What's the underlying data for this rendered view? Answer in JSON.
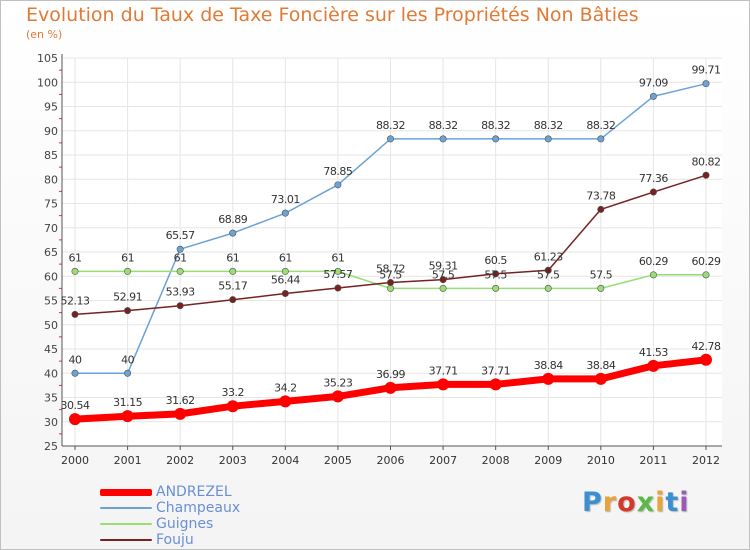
{
  "header": {
    "title": "Evolution du Taux de Taxe Foncière sur les Propriétés Non Bâties",
    "unit": "(en %)"
  },
  "logo": {
    "text": "Proxiti",
    "colors": [
      "#3a8fd0",
      "#e8a33a",
      "#d43a2a",
      "#5db84a",
      "#e8a33a",
      "#3a8fd0",
      "#9a5ab8"
    ]
  },
  "chart_data": {
    "type": "line",
    "title": "Evolution du Taux de Taxe Foncière sur les Propriétés Non Bâties",
    "ylabel": "(en %)",
    "xlabel": "",
    "x": [
      "2000",
      "2001",
      "2002",
      "2003",
      "2004",
      "2005",
      "2006",
      "2007",
      "2008",
      "2009",
      "2010",
      "2011",
      "2012"
    ],
    "ylim": [
      25,
      105
    ],
    "yticks": [
      25,
      30,
      35,
      40,
      45,
      50,
      55,
      60,
      65,
      70,
      75,
      80,
      85,
      90,
      95,
      100,
      105
    ],
    "grid": true,
    "legend_position": "bottom-left",
    "series": [
      {
        "name": "ANDREZEL",
        "color": "#ff0000",
        "emphasis": true,
        "values": [
          30.54,
          31.15,
          31.62,
          33.2,
          34.2,
          35.23,
          36.99,
          37.71,
          37.71,
          38.84,
          38.84,
          41.53,
          42.78
        ],
        "labels": [
          "30.54",
          "31.15",
          "31.62",
          "33.2",
          "34.2",
          "35.23",
          "36.99",
          "37.71",
          "37.71",
          "38.84",
          "38.84",
          "41.53",
          "42.78"
        ]
      },
      {
        "name": "Champeaux",
        "color": "#6ba3d6",
        "emphasis": false,
        "values": [
          40,
          40,
          65.57,
          68.89,
          73.01,
          78.85,
          88.32,
          88.32,
          88.32,
          88.32,
          88.32,
          97.09,
          99.71
        ],
        "labels": [
          "40",
          "40",
          "65.57",
          "68.89",
          "73.01",
          "78.85",
          "88.32",
          "88.32",
          "88.32",
          "88.32",
          "88.32",
          "97.09",
          "99.71"
        ]
      },
      {
        "name": "Guignes",
        "color": "#99dd77",
        "emphasis": false,
        "values": [
          61,
          61,
          61,
          61,
          61,
          61,
          57.5,
          57.5,
          57.5,
          57.5,
          57.5,
          60.29,
          60.29
        ],
        "labels": [
          "61",
          "61",
          "61",
          "61",
          "61",
          "61",
          "57.5",
          "57.5",
          "57.5",
          "57.5",
          "57.5",
          "60.29",
          "60.29"
        ]
      },
      {
        "name": "Fouju",
        "color": "#772222",
        "emphasis": false,
        "values": [
          52.13,
          52.91,
          53.93,
          55.17,
          56.44,
          57.57,
          58.72,
          59.31,
          60.5,
          61.23,
          73.78,
          77.36,
          80.82
        ],
        "labels": [
          "52.13",
          "52.91",
          "53.93",
          "55.17",
          "56.44",
          "57.57",
          "58.72",
          "59.31",
          "60.5",
          "61.23",
          "73.78",
          "77.36",
          "80.82"
        ]
      }
    ]
  }
}
